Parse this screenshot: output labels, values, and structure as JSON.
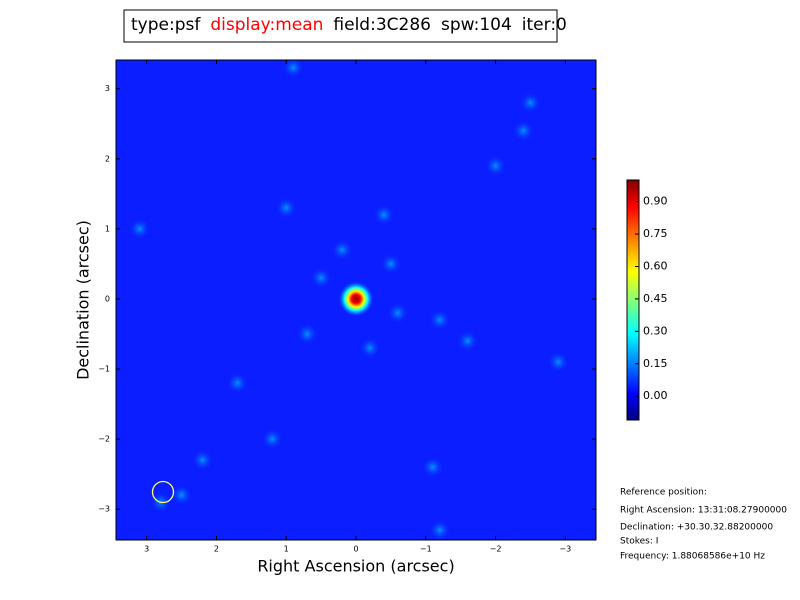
{
  "chart_data": {
    "type": "image",
    "title_parts": [
      {
        "text": "type:psf",
        "color": "#000000"
      },
      {
        "text": "display:mean",
        "color": "#ff0000"
      },
      {
        "text": "field:3C286",
        "color": "#000000"
      },
      {
        "text": "spw:104",
        "color": "#000000"
      },
      {
        "text": "iter:0",
        "color": "#000000"
      }
    ],
    "xlabel": "Right Ascension (arcsec)",
    "ylabel": "Declination (arcsec)",
    "xlim": [
      3.44,
      -3.44
    ],
    "ylim": [
      -3.44,
      3.41
    ],
    "xticks": [
      3,
      2,
      1,
      0,
      {
        "value": -1,
        "label": "−1"
      },
      {
        "value": -2,
        "label": "−2"
      },
      {
        "value": -3,
        "label": "−3"
      }
    ],
    "yticks": [
      {
        "value": -3,
        "label": "−3"
      },
      {
        "value": -2,
        "label": "−2"
      },
      {
        "value": -1,
        "label": "−1"
      },
      0,
      1,
      2,
      3
    ],
    "colorbar": {
      "colormap": "jet",
      "clim": [
        -0.11,
        1.0
      ],
      "ticks": [
        {
          "value": 0,
          "label": "0.00"
        },
        {
          "value": 0.15,
          "label": "0.15"
        },
        {
          "value": 0.3,
          "label": "0.30"
        },
        {
          "value": 0.45,
          "label": "0.45"
        },
        {
          "value": 0.6,
          "label": "0.60"
        },
        {
          "value": 0.75,
          "label": "0.75"
        },
        {
          "value": 0.9,
          "label": "0.90"
        }
      ]
    },
    "annotations": [
      "Reference position:",
      "Right Ascension: 13:31:08.27900000",
      "Declination: +30.30.32.88200000",
      "Stokes: I",
      "Frequency: 1.88068586e+10 Hz"
    ]
  }
}
